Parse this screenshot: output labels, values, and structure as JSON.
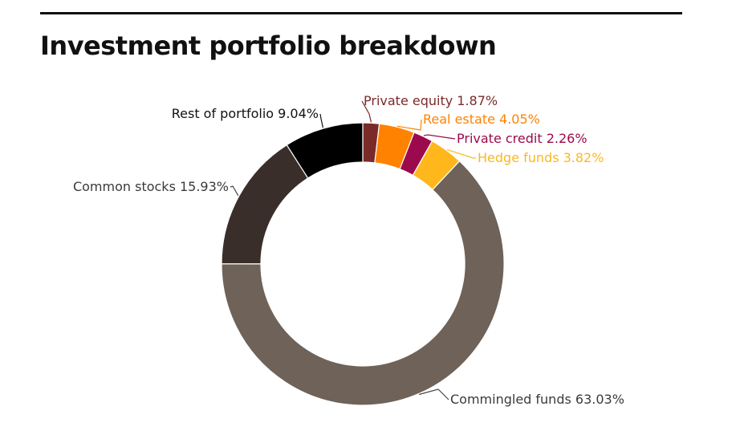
{
  "page": {
    "title": "Investment portfolio breakdown"
  },
  "chart_data": {
    "type": "pie",
    "variant": "donut",
    "title": "Investment portfolio breakdown",
    "unit": "%",
    "slices": [
      {
        "name": "Private equity",
        "value": 1.87,
        "color": "#7b2a2a",
        "label": "Private equity 1.87%"
      },
      {
        "name": "Real estate",
        "value": 4.05,
        "color": "#ff8200",
        "label": "Real estate 4.05%"
      },
      {
        "name": "Private credit",
        "value": 2.26,
        "color": "#9c0a4d",
        "label": "Private credit 2.26%"
      },
      {
        "name": "Hedge funds",
        "value": 3.82,
        "color": "#ffb71b",
        "label": "Hedge funds 3.82%"
      },
      {
        "name": "Commingled funds",
        "value": 63.03,
        "color": "#6e6259",
        "label": "Commingled funds 63.03%"
      },
      {
        "name": "Common stocks",
        "value": 15.93,
        "color": "#3a2e2b",
        "label": "Common stocks 15.93%"
      },
      {
        "name": "Rest of portfolio",
        "value": 9.04,
        "color": "#000000",
        "label": "Rest of portfolio 9.04%"
      }
    ]
  }
}
